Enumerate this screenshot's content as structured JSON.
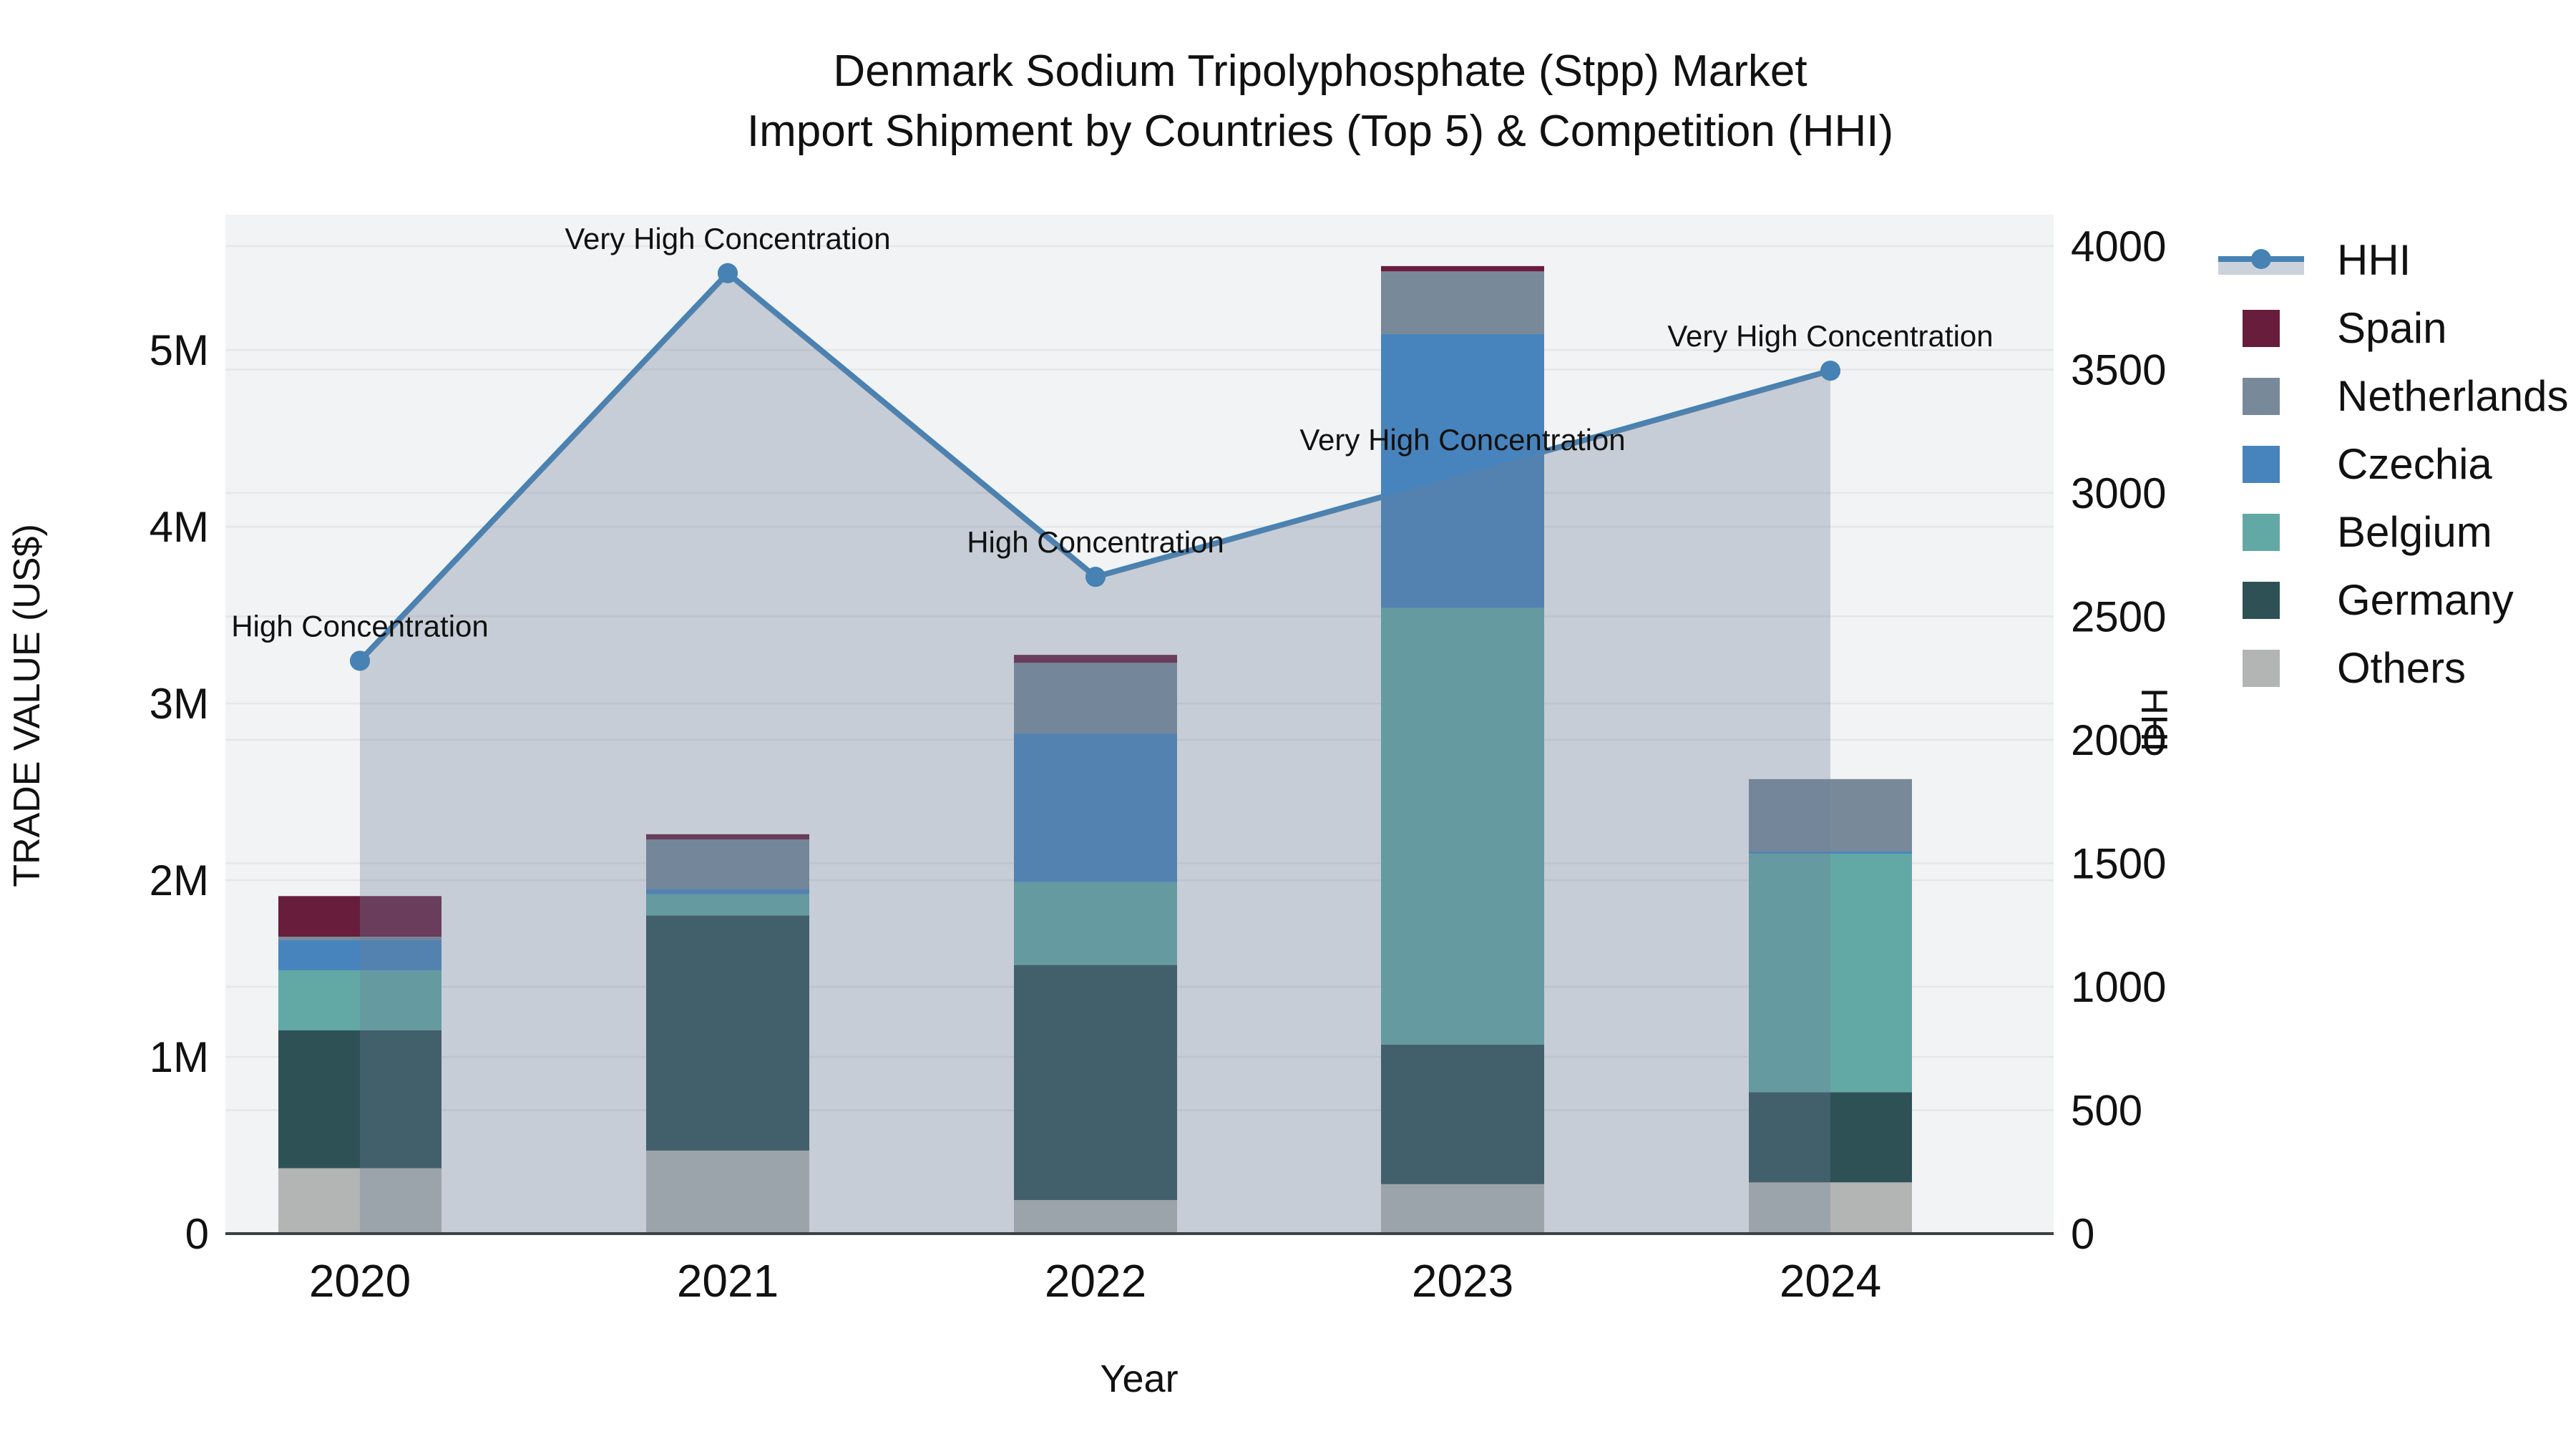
{
  "title": {
    "line1": "Denmark Sodium Tripolyphosphate (Stpp) Market",
    "line2": "Import Shipment by Countries (Top 5) & Competition (HHI)"
  },
  "chart_data": {
    "type": "combo-stacked-bar-line",
    "categories": [
      "2020",
      "2021",
      "2022",
      "2023",
      "2024"
    ],
    "x_axis": {
      "title": "Year"
    },
    "left_axis": {
      "title": "TRADE VALUE (US$)",
      "unit": "millions US$",
      "tick_labels": [
        "0",
        "1M",
        "2M",
        "3M",
        "4M",
        "5M"
      ],
      "tick_values": [
        0,
        1,
        2,
        3,
        4,
        5
      ],
      "range": [
        0,
        5.766
      ],
      "grid": true
    },
    "right_axis": {
      "title": "HHI",
      "tick_labels": [
        "0",
        "500",
        "1000",
        "1500",
        "2000",
        "2500",
        "3000",
        "3500",
        "4000"
      ],
      "tick_values": [
        0,
        500,
        1000,
        1500,
        2000,
        2500,
        3000,
        3500,
        4000
      ],
      "range": [
        0,
        4127
      ],
      "grid": true
    },
    "bar_series_bottom_to_top": [
      {
        "name": "Others",
        "color": "#b2b5b4",
        "values": [
          0.37,
          0.47,
          0.19,
          0.28,
          0.29
        ]
      },
      {
        "name": "Germany",
        "color": "#2e5156",
        "values": [
          0.78,
          1.33,
          1.33,
          0.79,
          0.51
        ]
      },
      {
        "name": "Belgium",
        "color": "#62a8a4",
        "values": [
          0.34,
          0.12,
          0.47,
          2.47,
          1.35
        ]
      },
      {
        "name": "Czechia",
        "color": "#4784bd",
        "values": [
          0.17,
          0.03,
          0.84,
          1.55,
          0.012
        ]
      },
      {
        "name": "Netherlands",
        "color": "#78899a",
        "values": [
          0.02,
          0.28,
          0.4,
          0.355,
          0.41
        ]
      },
      {
        "name": "Spain",
        "color": "#681d3c",
        "values": [
          0.23,
          0.03,
          0.045,
          0.03,
          0.0
        ]
      }
    ],
    "line_series": {
      "name": "HHI",
      "color": "#4682b4",
      "fill_color": "rgba(110,126,156,0.33)",
      "values": [
        2320,
        3890,
        2660,
        3075,
        3495
      ]
    },
    "annotations": [
      {
        "category": "2020",
        "text": "High Concentration"
      },
      {
        "category": "2021",
        "text": "Very High Concentration"
      },
      {
        "category": "2022",
        "text": "High Concentration"
      },
      {
        "category": "2023",
        "text": "Very High Concentration"
      },
      {
        "category": "2024",
        "text": "Very High Concentration"
      }
    ],
    "legend_order": [
      "HHI",
      "Spain",
      "Netherlands",
      "Czechia",
      "Belgium",
      "Germany",
      "Others"
    ],
    "plot_background": "#f2f3f4",
    "grid_color": "#e4e6e8",
    "axis_line_color": "#3a4147"
  }
}
